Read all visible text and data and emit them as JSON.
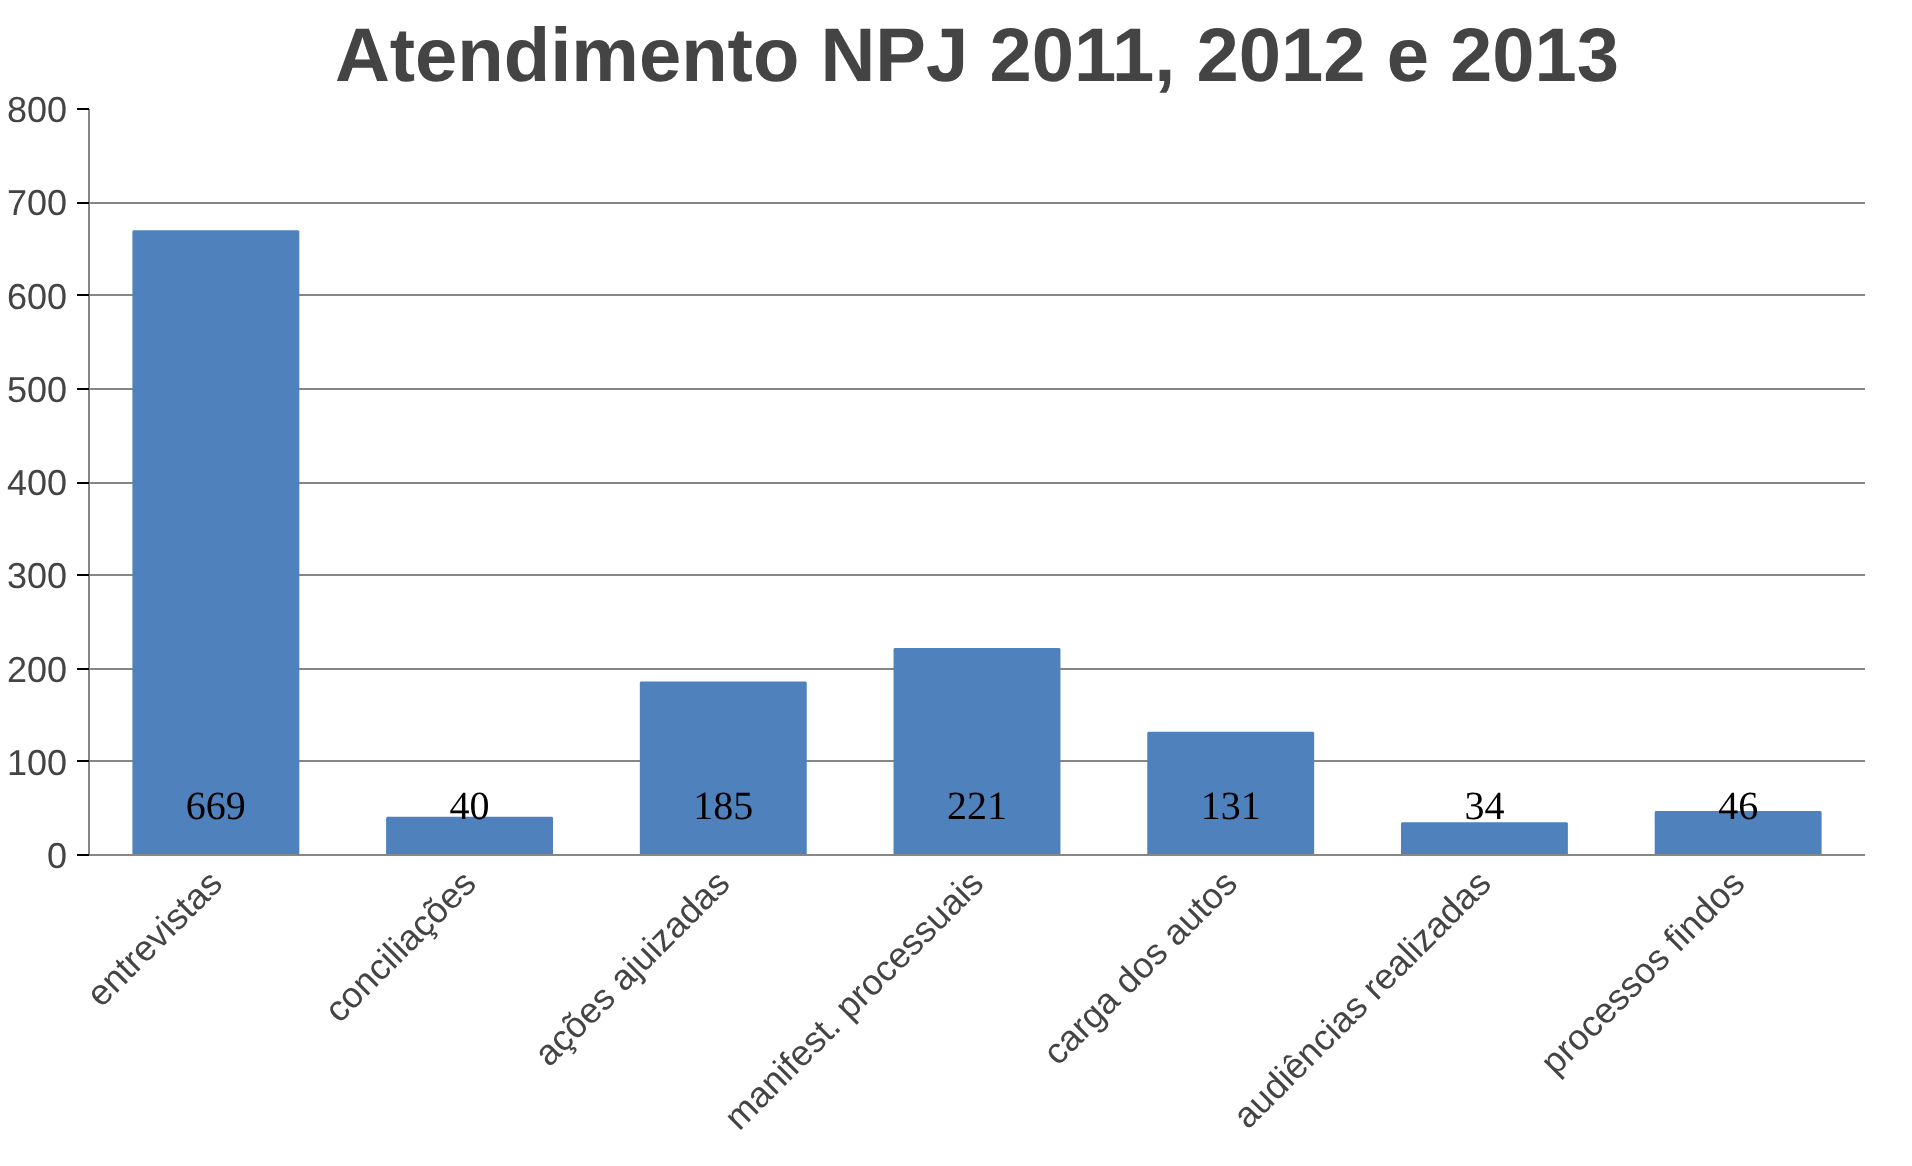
{
  "chart_data": {
    "type": "bar",
    "title": "Atendimento NPJ 2011, 2012 e 2013",
    "categories": [
      "entrevistas",
      "conciliações",
      "ações ajuizadas",
      "manifest. processuais",
      "carga dos autos",
      "audiências realizadas",
      "processos findos"
    ],
    "values": [
      669,
      40,
      185,
      221,
      131,
      34,
      46
    ],
    "color": "#4f81bd",
    "ylim": [
      0,
      800
    ],
    "yticks": [
      0,
      100,
      200,
      300,
      400,
      500,
      600,
      700,
      800
    ],
    "grid": "y",
    "data_labels": true
  }
}
